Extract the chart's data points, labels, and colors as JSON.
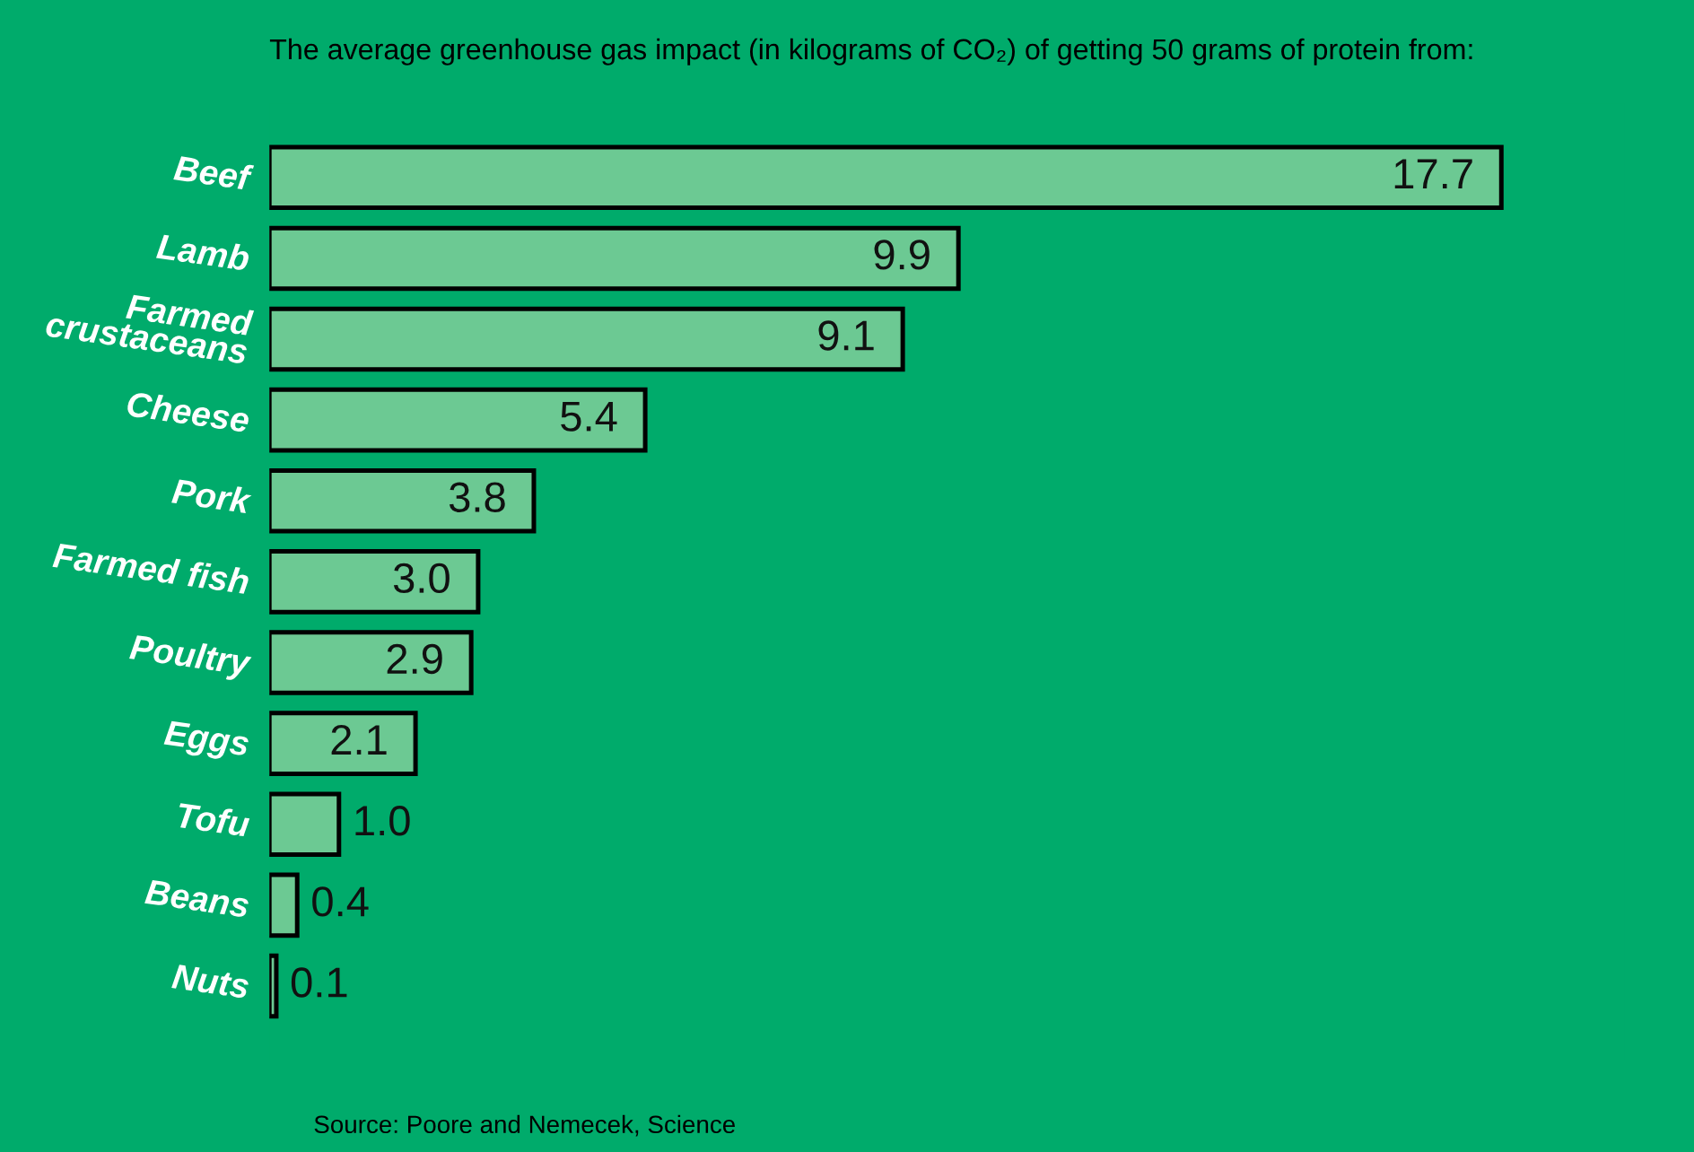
{
  "chart_data": {
    "type": "bar",
    "orientation": "horizontal",
    "title": "The average greenhouse gas impact (in kilograms of CO₂) of getting 50 grams of protein from:",
    "categories": [
      "Beef",
      "Lamb",
      "Farmed\ncrustaceans",
      "Cheese",
      "Pork",
      "Farmed fish",
      "Poultry",
      "Eggs",
      "Tofu",
      "Beans",
      "Nuts"
    ],
    "values": [
      17.7,
      9.9,
      9.1,
      5.4,
      3.8,
      3.0,
      2.9,
      2.1,
      1.0,
      0.4,
      0.1
    ],
    "value_labels": [
      "17.7",
      "9.9",
      "9.1",
      "5.4",
      "3.8",
      "3.0",
      "2.9",
      "2.1",
      "1.0",
      "0.4",
      "0.1"
    ],
    "color": "#6cc993",
    "annotations": [
      "Source: Poore and Nemecek, Science"
    ],
    "grid": false,
    "legend": false
  }
}
